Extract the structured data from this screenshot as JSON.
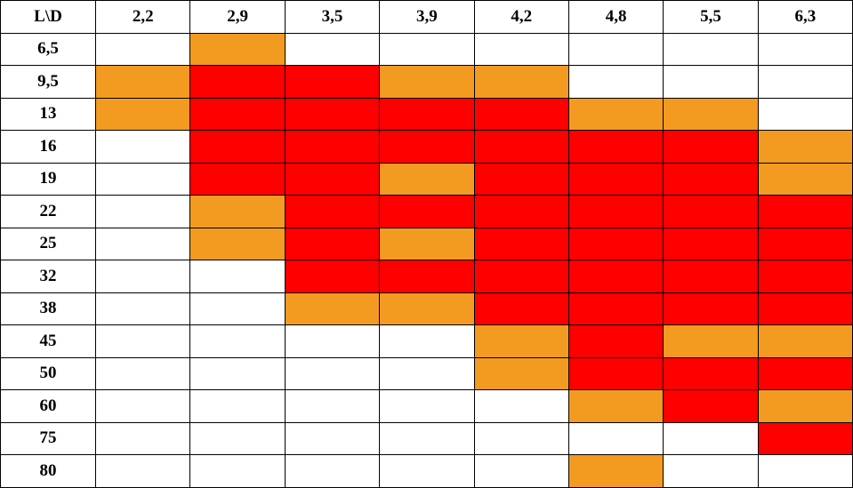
{
  "table": {
    "corner_label": "L\\D",
    "columns": [
      "2,2",
      "2,9",
      "3,5",
      "3,9",
      "4,2",
      "4,8",
      "5,5",
      "6,3"
    ],
    "legend_colors": {
      "R": "#ff0000",
      "O": "#f39b21",
      "W": "#ffffff"
    },
    "rows": [
      {
        "label": "6,5",
        "cells": [
          "W",
          "O",
          "W",
          "W",
          "W",
          "W",
          "W",
          "W"
        ]
      },
      {
        "label": "9,5",
        "cells": [
          "O",
          "R",
          "R",
          "O",
          "O",
          "W",
          "W",
          "W"
        ]
      },
      {
        "label": "13",
        "cells": [
          "O",
          "R",
          "R",
          "R",
          "R",
          "O",
          "O",
          "W"
        ]
      },
      {
        "label": "16",
        "cells": [
          "W",
          "R",
          "R",
          "R",
          "R",
          "R",
          "R",
          "O"
        ]
      },
      {
        "label": "19",
        "cells": [
          "W",
          "R",
          "R",
          "O",
          "R",
          "R",
          "R",
          "O"
        ]
      },
      {
        "label": "22",
        "cells": [
          "W",
          "O",
          "R",
          "R",
          "R",
          "R",
          "R",
          "R"
        ]
      },
      {
        "label": "25",
        "cells": [
          "W",
          "O",
          "R",
          "O",
          "R",
          "R",
          "R",
          "R"
        ]
      },
      {
        "label": "32",
        "cells": [
          "W",
          "W",
          "R",
          "R",
          "R",
          "R",
          "R",
          "R"
        ]
      },
      {
        "label": "38",
        "cells": [
          "W",
          "W",
          "O",
          "O",
          "R",
          "R",
          "R",
          "R"
        ]
      },
      {
        "label": "45",
        "cells": [
          "W",
          "W",
          "W",
          "W",
          "O",
          "R",
          "O",
          "O"
        ]
      },
      {
        "label": "50",
        "cells": [
          "W",
          "W",
          "W",
          "W",
          "O",
          "R",
          "R",
          "R"
        ]
      },
      {
        "label": "60",
        "cells": [
          "W",
          "W",
          "W",
          "W",
          "W",
          "O",
          "R",
          "O"
        ]
      },
      {
        "label": "75",
        "cells": [
          "W",
          "W",
          "W",
          "W",
          "W",
          "W",
          "W",
          "R"
        ]
      },
      {
        "label": "80",
        "cells": [
          "W",
          "W",
          "W",
          "W",
          "W",
          "O",
          "W",
          "W"
        ]
      }
    ]
  }
}
